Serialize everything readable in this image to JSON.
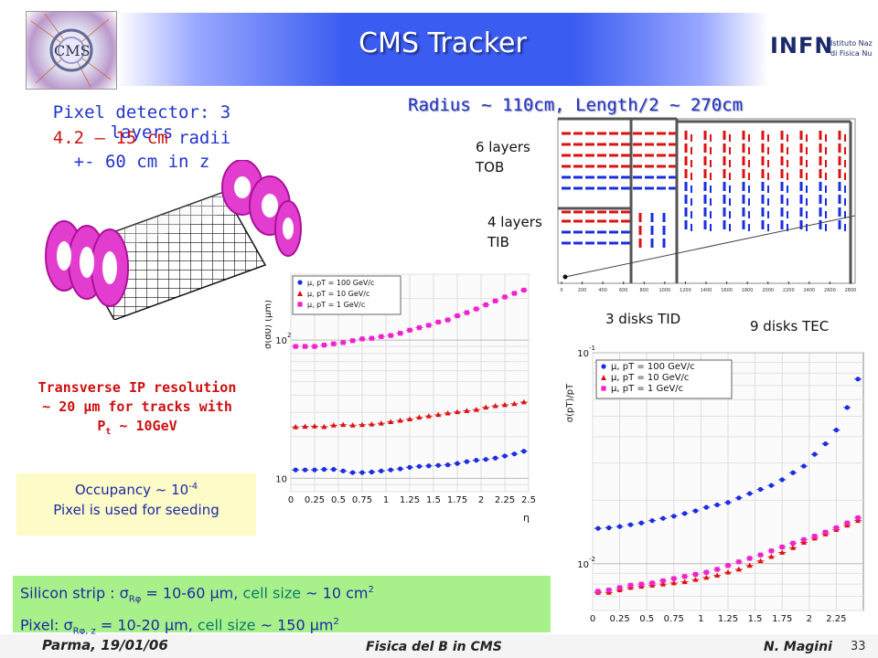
{
  "title": "CMS Tracker",
  "pixel": {
    "line1": "Pixel detector: 3 layers",
    "line2a": "4.2 – 15 cm",
    "line2b": " radii",
    "line3": "+- 60 cm in z"
  },
  "geometry": {
    "heading": "Radius ~ 110cm, Length/2 ~ 270cm",
    "tob": [
      "6 layers",
      "TOB"
    ],
    "tib": [
      "4 layers",
      "TIB"
    ],
    "tid": "3 disks TID",
    "tec": "9 disks TEC",
    "z_ticks": [
      "0",
      "200",
      "400",
      "600",
      "800",
      "1000",
      "1200",
      "1400",
      "1600",
      "1800",
      "2000",
      "2200",
      "2400",
      "2600",
      "2800"
    ]
  },
  "ip": {
    "line1": "Transverse IP resolution",
    "line2": "~ 20 μm for tracks with",
    "line3a": "P",
    "line3b": "t",
    "line3c": " ~ 10GeV"
  },
  "occupancy": {
    "line1a": "Occupancy ~ 10",
    "line1b": "-4",
    "line2": "Pixel is used for seeding"
  },
  "strip_box": {
    "l1a": "Silicon strip : ",
    "l1b": "σ",
    "l1c": "Rφ",
    "l1d": " = 10-60 μm, ",
    "l1e": "cell size",
    "l1f": " ~ 10 cm",
    "l1g": "2",
    "l2a": "Pixel: ",
    "l2b": "σ",
    "l2c": "Rφ, z",
    "l2d": " = 10-20 μm, ",
    "l2e": "cell size",
    "l2f": " ~ 150 μm",
    "l2g": "2"
  },
  "footer": {
    "left": "Parma, 19/01/06",
    "center": "Fisica del B in CMS",
    "right": "N. Magini",
    "page": "33"
  },
  "infn": {
    "name": "INFN",
    "sub1": "Istituto Nazionale",
    "sub2": "di Fisica Nucleare"
  },
  "cms_logo_text": "CMS",
  "colors": {
    "blue": "#1a2ee0",
    "red": "#dd1111",
    "magenta": "#ee22cc",
    "green_box": "#a8f08a",
    "yellow_box": "#fdfbc8"
  },
  "chart_data": [
    {
      "type": "scatter",
      "ylabel": "σ(d0) (μm)",
      "xlabel": "η",
      "ylog": true,
      "xlim": [
        0,
        2.5
      ],
      "ylim": [
        8,
        300
      ],
      "x_ticks": [
        "0",
        "0.25",
        "0.5",
        "0.75",
        "1",
        "1.25",
        "1.5",
        "1.75",
        "2",
        "2.25",
        "2.5"
      ],
      "y_ticks": [
        {
          "label": "10",
          "value": 10
        },
        {
          "label": "10",
          "sup": "2",
          "value": 100
        }
      ],
      "legend": [
        "μ, pT = 100 GeV/c",
        "μ, pT = 10 GeV/c",
        "μ, pT = 1 GeV/c"
      ],
      "series": [
        {
          "name": "μ, pT = 100 GeV/c",
          "color": "#1a2ee0",
          "marker": "circle",
          "x": [
            0.05,
            0.15,
            0.25,
            0.35,
            0.45,
            0.55,
            0.65,
            0.75,
            0.85,
            0.95,
            1.05,
            1.15,
            1.25,
            1.35,
            1.45,
            1.55,
            1.65,
            1.75,
            1.85,
            1.95,
            2.05,
            2.15,
            2.25,
            2.35,
            2.45
          ],
          "y": [
            11.5,
            11.5,
            11.5,
            11.6,
            11.6,
            11.3,
            11.0,
            11.0,
            11.1,
            11.3,
            11.5,
            11.7,
            12.0,
            12.2,
            12.3,
            12.4,
            12.5,
            12.8,
            13.2,
            13.5,
            13.7,
            14.0,
            14.5,
            15.0,
            15.7
          ]
        },
        {
          "name": "μ, pT = 10 GeV/c",
          "color": "#dd1111",
          "marker": "triangle",
          "x": [
            0.05,
            0.15,
            0.25,
            0.35,
            0.45,
            0.55,
            0.65,
            0.75,
            0.85,
            0.95,
            1.05,
            1.15,
            1.25,
            1.35,
            1.45,
            1.55,
            1.65,
            1.75,
            1.85,
            1.95,
            2.05,
            2.15,
            2.25,
            2.35,
            2.45
          ],
          "y": [
            23.5,
            23.7,
            23.8,
            23.6,
            24.2,
            24.4,
            24.2,
            24.4,
            24.6,
            25.0,
            25.6,
            26.2,
            26.8,
            27.6,
            28.2,
            28.8,
            29.6,
            30.2,
            30.8,
            31.4,
            32.6,
            33.4,
            34.0,
            34.6,
            35.6
          ]
        },
        {
          "name": "μ, pT = 1 GeV/c",
          "color": "#ee22cc",
          "marker": "square",
          "x": [
            0.05,
            0.15,
            0.25,
            0.35,
            0.45,
            0.55,
            0.65,
            0.75,
            0.85,
            0.95,
            1.05,
            1.15,
            1.25,
            1.35,
            1.45,
            1.55,
            1.65,
            1.75,
            1.85,
            1.95,
            2.05,
            2.15,
            2.25,
            2.35,
            2.45
          ],
          "y": [
            90,
            90,
            90,
            92,
            94,
            96,
            99,
            102,
            103,
            106,
            108,
            112,
            118,
            123,
            128,
            135,
            140,
            150,
            158,
            168,
            180,
            192,
            205,
            218,
            230
          ]
        }
      ]
    },
    {
      "type": "scatter",
      "ylabel": "σ(pT)/pT",
      "xlabel": "η",
      "ylog": true,
      "xlim": [
        0,
        2.5
      ],
      "ylim": [
        0.006,
        0.1
      ],
      "x_ticks": [
        "0",
        "0.25",
        "0.5",
        "0.75",
        "1",
        "1.25",
        "1.5",
        "1.75",
        "2",
        "2.25"
      ],
      "y_ticks": [
        {
          "label": "10",
          "sup": "-2",
          "value": 0.01
        },
        {
          "label": "10",
          "sup": "-1",
          "value": 0.1
        }
      ],
      "legend": [
        "μ, pT = 100 GeV/c",
        "μ, pT = 10 GeV/c",
        "μ, pT = 1 GeV/c"
      ],
      "series": [
        {
          "name": "μ, pT = 100 GeV/c",
          "color": "#1a2ee0",
          "marker": "circle",
          "x": [
            0.05,
            0.15,
            0.25,
            0.35,
            0.45,
            0.55,
            0.65,
            0.75,
            0.85,
            0.95,
            1.05,
            1.15,
            1.25,
            1.35,
            1.45,
            1.55,
            1.65,
            1.75,
            1.85,
            1.95,
            2.05,
            2.15,
            2.25,
            2.35,
            2.45
          ],
          "y": [
            0.0147,
            0.0148,
            0.015,
            0.0153,
            0.0156,
            0.016,
            0.0164,
            0.0168,
            0.0173,
            0.0178,
            0.0185,
            0.019,
            0.0195,
            0.0205,
            0.0215,
            0.0225,
            0.0235,
            0.025,
            0.027,
            0.029,
            0.033,
            0.037,
            0.043,
            0.055,
            0.075
          ]
        },
        {
          "name": "μ, pT = 10 GeV/c",
          "color": "#dd1111",
          "marker": "triangle",
          "x": [
            0.05,
            0.15,
            0.25,
            0.35,
            0.45,
            0.55,
            0.65,
            0.75,
            0.85,
            0.95,
            1.05,
            1.15,
            1.25,
            1.35,
            1.45,
            1.55,
            1.65,
            1.75,
            1.85,
            1.95,
            2.05,
            2.15,
            2.25,
            2.35,
            2.45
          ],
          "y": [
            0.0073,
            0.0073,
            0.0075,
            0.0077,
            0.0078,
            0.0079,
            0.008,
            0.0081,
            0.0082,
            0.0084,
            0.0086,
            0.0088,
            0.0091,
            0.0094,
            0.0098,
            0.0103,
            0.0108,
            0.0113,
            0.0119,
            0.0126,
            0.0132,
            0.0138,
            0.0145,
            0.0152,
            0.016
          ]
        },
        {
          "name": "μ, pT = 1 GeV/c",
          "color": "#ee22cc",
          "marker": "square",
          "x": [
            0.05,
            0.15,
            0.25,
            0.35,
            0.45,
            0.55,
            0.65,
            0.75,
            0.85,
            0.95,
            1.05,
            1.15,
            1.25,
            1.35,
            1.45,
            1.55,
            1.65,
            1.75,
            1.85,
            1.95,
            2.05,
            2.15,
            2.25,
            2.35,
            2.45
          ],
          "y": [
            0.0074,
            0.0075,
            0.0077,
            0.0079,
            0.008,
            0.0081,
            0.0083,
            0.0085,
            0.0087,
            0.0089,
            0.0091,
            0.0094,
            0.0098,
            0.0102,
            0.0106,
            0.011,
            0.0115,
            0.012,
            0.0125,
            0.013,
            0.0135,
            0.0141,
            0.0148,
            0.0156,
            0.0165
          ]
        }
      ]
    }
  ]
}
